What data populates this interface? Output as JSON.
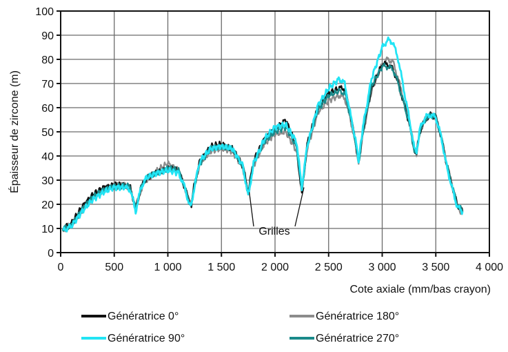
{
  "chart_data": {
    "type": "line",
    "title": "",
    "xlabel": "Cote axiale (mm/bas crayon)",
    "ylabel": "Épaisseur de zircone (m)",
    "xlim": [
      0,
      4000
    ],
    "ylim": [
      0,
      100
    ],
    "x_ticks": [
      0,
      500,
      1000,
      1500,
      2000,
      2500,
      3000,
      3500,
      4000
    ],
    "x_tick_labels": [
      "0",
      "500",
      "1 000",
      "1 500",
      "2 000",
      "2 500",
      "3 000",
      "3 500",
      "4 000"
    ],
    "y_ticks": [
      0,
      10,
      20,
      30,
      40,
      50,
      60,
      70,
      80,
      90,
      100
    ],
    "y_tick_labels": [
      "0",
      "10",
      "20",
      "30",
      "40",
      "50",
      "60",
      "70",
      "80",
      "90",
      "100"
    ],
    "grid": true,
    "legend_position": "bottom",
    "annotation": {
      "text": "Grilles",
      "points": [
        [
          1760,
          25
        ],
        [
          2270,
          27
        ]
      ]
    },
    "series": [
      {
        "name": "Génératrice 0°",
        "color": "#111111",
        "x": [
          20,
          100,
          200,
          300,
          400,
          500,
          600,
          650,
          700,
          750,
          800,
          900,
          1000,
          1100,
          1150,
          1200,
          1220,
          1250,
          1300,
          1400,
          1500,
          1600,
          1700,
          1750,
          1800,
          1900,
          2000,
          2100,
          2200,
          2250,
          2300,
          2400,
          2500,
          2600,
          2650,
          2700,
          2750,
          2780,
          2820,
          2900,
          3000,
          3050,
          3100,
          3150,
          3200,
          3250,
          3300,
          3320,
          3350,
          3400,
          3450,
          3500,
          3550,
          3600,
          3650,
          3700,
          3750
        ],
        "y": [
          10,
          12,
          19,
          24,
          27,
          28,
          28,
          27,
          18,
          27,
          31,
          33,
          35,
          34,
          28,
          21,
          20,
          29,
          38,
          44,
          45,
          43,
          36,
          25,
          38,
          47,
          51,
          55,
          44,
          24,
          45,
          60,
          66,
          68,
          68,
          58,
          46,
          37,
          50,
          68,
          78,
          78,
          76,
          70,
          62,
          54,
          43,
          41,
          50,
          55,
          57,
          56,
          48,
          37,
          28,
          20,
          17
        ]
      },
      {
        "name": "Génératrice 180°",
        "color": "#8c8c8c",
        "x": [
          20,
          100,
          200,
          300,
          400,
          500,
          600,
          650,
          700,
          750,
          800,
          900,
          1000,
          1100,
          1150,
          1200,
          1220,
          1250,
          1300,
          1400,
          1500,
          1600,
          1700,
          1750,
          1800,
          1900,
          2000,
          2100,
          2200,
          2250,
          2300,
          2400,
          2500,
          2600,
          2650,
          2700,
          2750,
          2780,
          2820,
          2900,
          3000,
          3050,
          3100,
          3150,
          3200,
          3250,
          3300,
          3320,
          3350,
          3400,
          3450,
          3500,
          3550,
          3600,
          3650,
          3700,
          3750
        ],
        "y": [
          9,
          12,
          17,
          23,
          26,
          28,
          28,
          26,
          19,
          26,
          30,
          34,
          37,
          34,
          28,
          21,
          20,
          28,
          37,
          42,
          43,
          42,
          35,
          24,
          36,
          45,
          49,
          50,
          42,
          26,
          43,
          58,
          63,
          65,
          64,
          56,
          45,
          37,
          49,
          67,
          78,
          80,
          79,
          72,
          63,
          55,
          43,
          41,
          50,
          55,
          57,
          56,
          48,
          37,
          28,
          19,
          16
        ]
      },
      {
        "name": "Génératrice 90°",
        "color": "#22e4f4",
        "x": [
          20,
          100,
          200,
          300,
          400,
          500,
          600,
          650,
          700,
          750,
          800,
          900,
          1000,
          1100,
          1150,
          1200,
          1220,
          1250,
          1300,
          1400,
          1500,
          1600,
          1700,
          1750,
          1800,
          1900,
          2000,
          2100,
          2200,
          2250,
          2300,
          2400,
          2500,
          2600,
          2650,
          2700,
          2750,
          2780,
          2820,
          2900,
          3000,
          3050,
          3100,
          3150,
          3200,
          3250,
          3300,
          3320,
          3350,
          3400,
          3450,
          3500,
          3550,
          3600,
          3650,
          3700,
          3750
        ],
        "y": [
          9,
          11,
          17,
          22,
          25,
          27,
          27,
          26,
          17,
          27,
          31,
          33,
          34,
          33,
          28,
          20,
          19,
          28,
          38,
          43,
          44,
          43,
          36,
          23,
          37,
          47,
          52,
          53,
          46,
          27,
          44,
          61,
          68,
          72,
          70,
          58,
          47,
          38,
          52,
          72,
          85,
          88,
          87,
          80,
          68,
          56,
          43,
          41,
          51,
          56,
          57,
          56,
          48,
          36,
          27,
          19,
          17
        ]
      },
      {
        "name": "Génératrice 270°",
        "color": "#1a8a8a",
        "x": [
          20,
          100,
          200,
          300,
          400,
          500,
          600,
          650,
          700,
          750,
          800,
          900,
          1000,
          1100,
          1150,
          1200,
          1220,
          1250,
          1300,
          1400,
          1500,
          1600,
          1700,
          1750,
          1800,
          1900,
          2000,
          2100,
          2200,
          2250,
          2300,
          2400,
          2500,
          2600,
          2650,
          2700,
          2750,
          2780,
          2820,
          2900,
          3000,
          3050,
          3100,
          3150,
          3200,
          3250,
          3300,
          3320,
          3350,
          3400,
          3450,
          3500,
          3550,
          3600,
          3650,
          3700,
          3750
        ],
        "y": [
          10,
          11,
          18,
          23,
          26,
          27,
          28,
          27,
          18,
          27,
          31,
          33,
          35,
          34,
          28,
          21,
          20,
          28,
          37,
          43,
          44,
          43,
          36,
          24,
          37,
          46,
          50,
          52,
          44,
          26,
          44,
          59,
          65,
          67,
          66,
          57,
          46,
          37,
          50,
          69,
          77,
          77,
          76,
          70,
          62,
          54,
          42,
          41,
          50,
          55,
          57,
          56,
          48,
          37,
          28,
          20,
          17
        ]
      }
    ]
  }
}
